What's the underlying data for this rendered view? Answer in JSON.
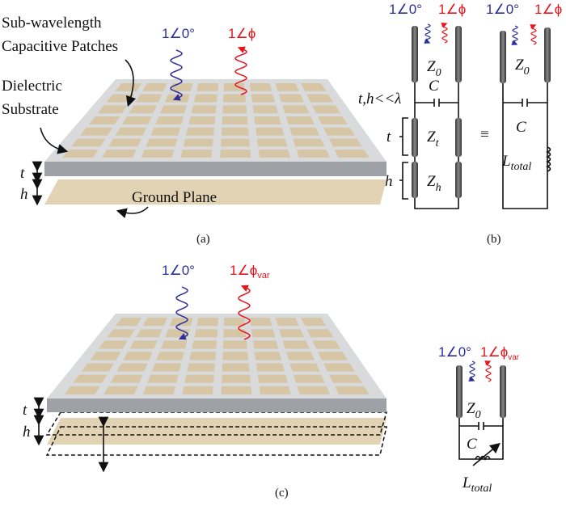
{
  "colors": {
    "incident": "#2e2e9a",
    "reflected": "#e8141c",
    "patch": "#d6c6a6",
    "substrate_top": "#d9dadc",
    "substrate_side": "#9ea2a6",
    "ground": "#e2d3b4"
  },
  "panel_a": {
    "label_patches_1": "Sub-wavelength",
    "label_patches_2": "Capacitive Patches",
    "label_substrate_1": "Dielectric",
    "label_substrate_2": "Substrate",
    "label_ground": "Ground Plane",
    "t": "t",
    "h": "h",
    "incident": "1∠0°",
    "reflected": "1∠ϕ",
    "caption": "(a)"
  },
  "panel_b": {
    "incident": "1∠0°",
    "reflected": "1∠ϕ",
    "incident_2": "1∠0°",
    "reflected_2": "1∠ϕ",
    "condition": "t,h<<λ",
    "z0": "Z",
    "z0_sub": "0",
    "c": "C",
    "zt": "Z",
    "zt_sub": "t",
    "zh": "Z",
    "zh_sub": "h",
    "t": "t",
    "h": "h",
    "equiv": "≡",
    "z0_2": "Z",
    "z0_2_sub": "0",
    "c_2": "C",
    "l": "L",
    "l_sub": "total",
    "caption": "(b)"
  },
  "panel_c": {
    "incident": "1∠0°",
    "reflected": "1∠ϕ",
    "reflected_sub": "var",
    "t": "t",
    "h": "h",
    "circ_incident": "1∠0°",
    "circ_reflected": "1∠ϕ",
    "circ_reflected_sub": "var",
    "z0": "Z",
    "z0_sub": "0",
    "c": "C",
    "l": "L",
    "l_sub": "total",
    "caption": "(c)"
  }
}
